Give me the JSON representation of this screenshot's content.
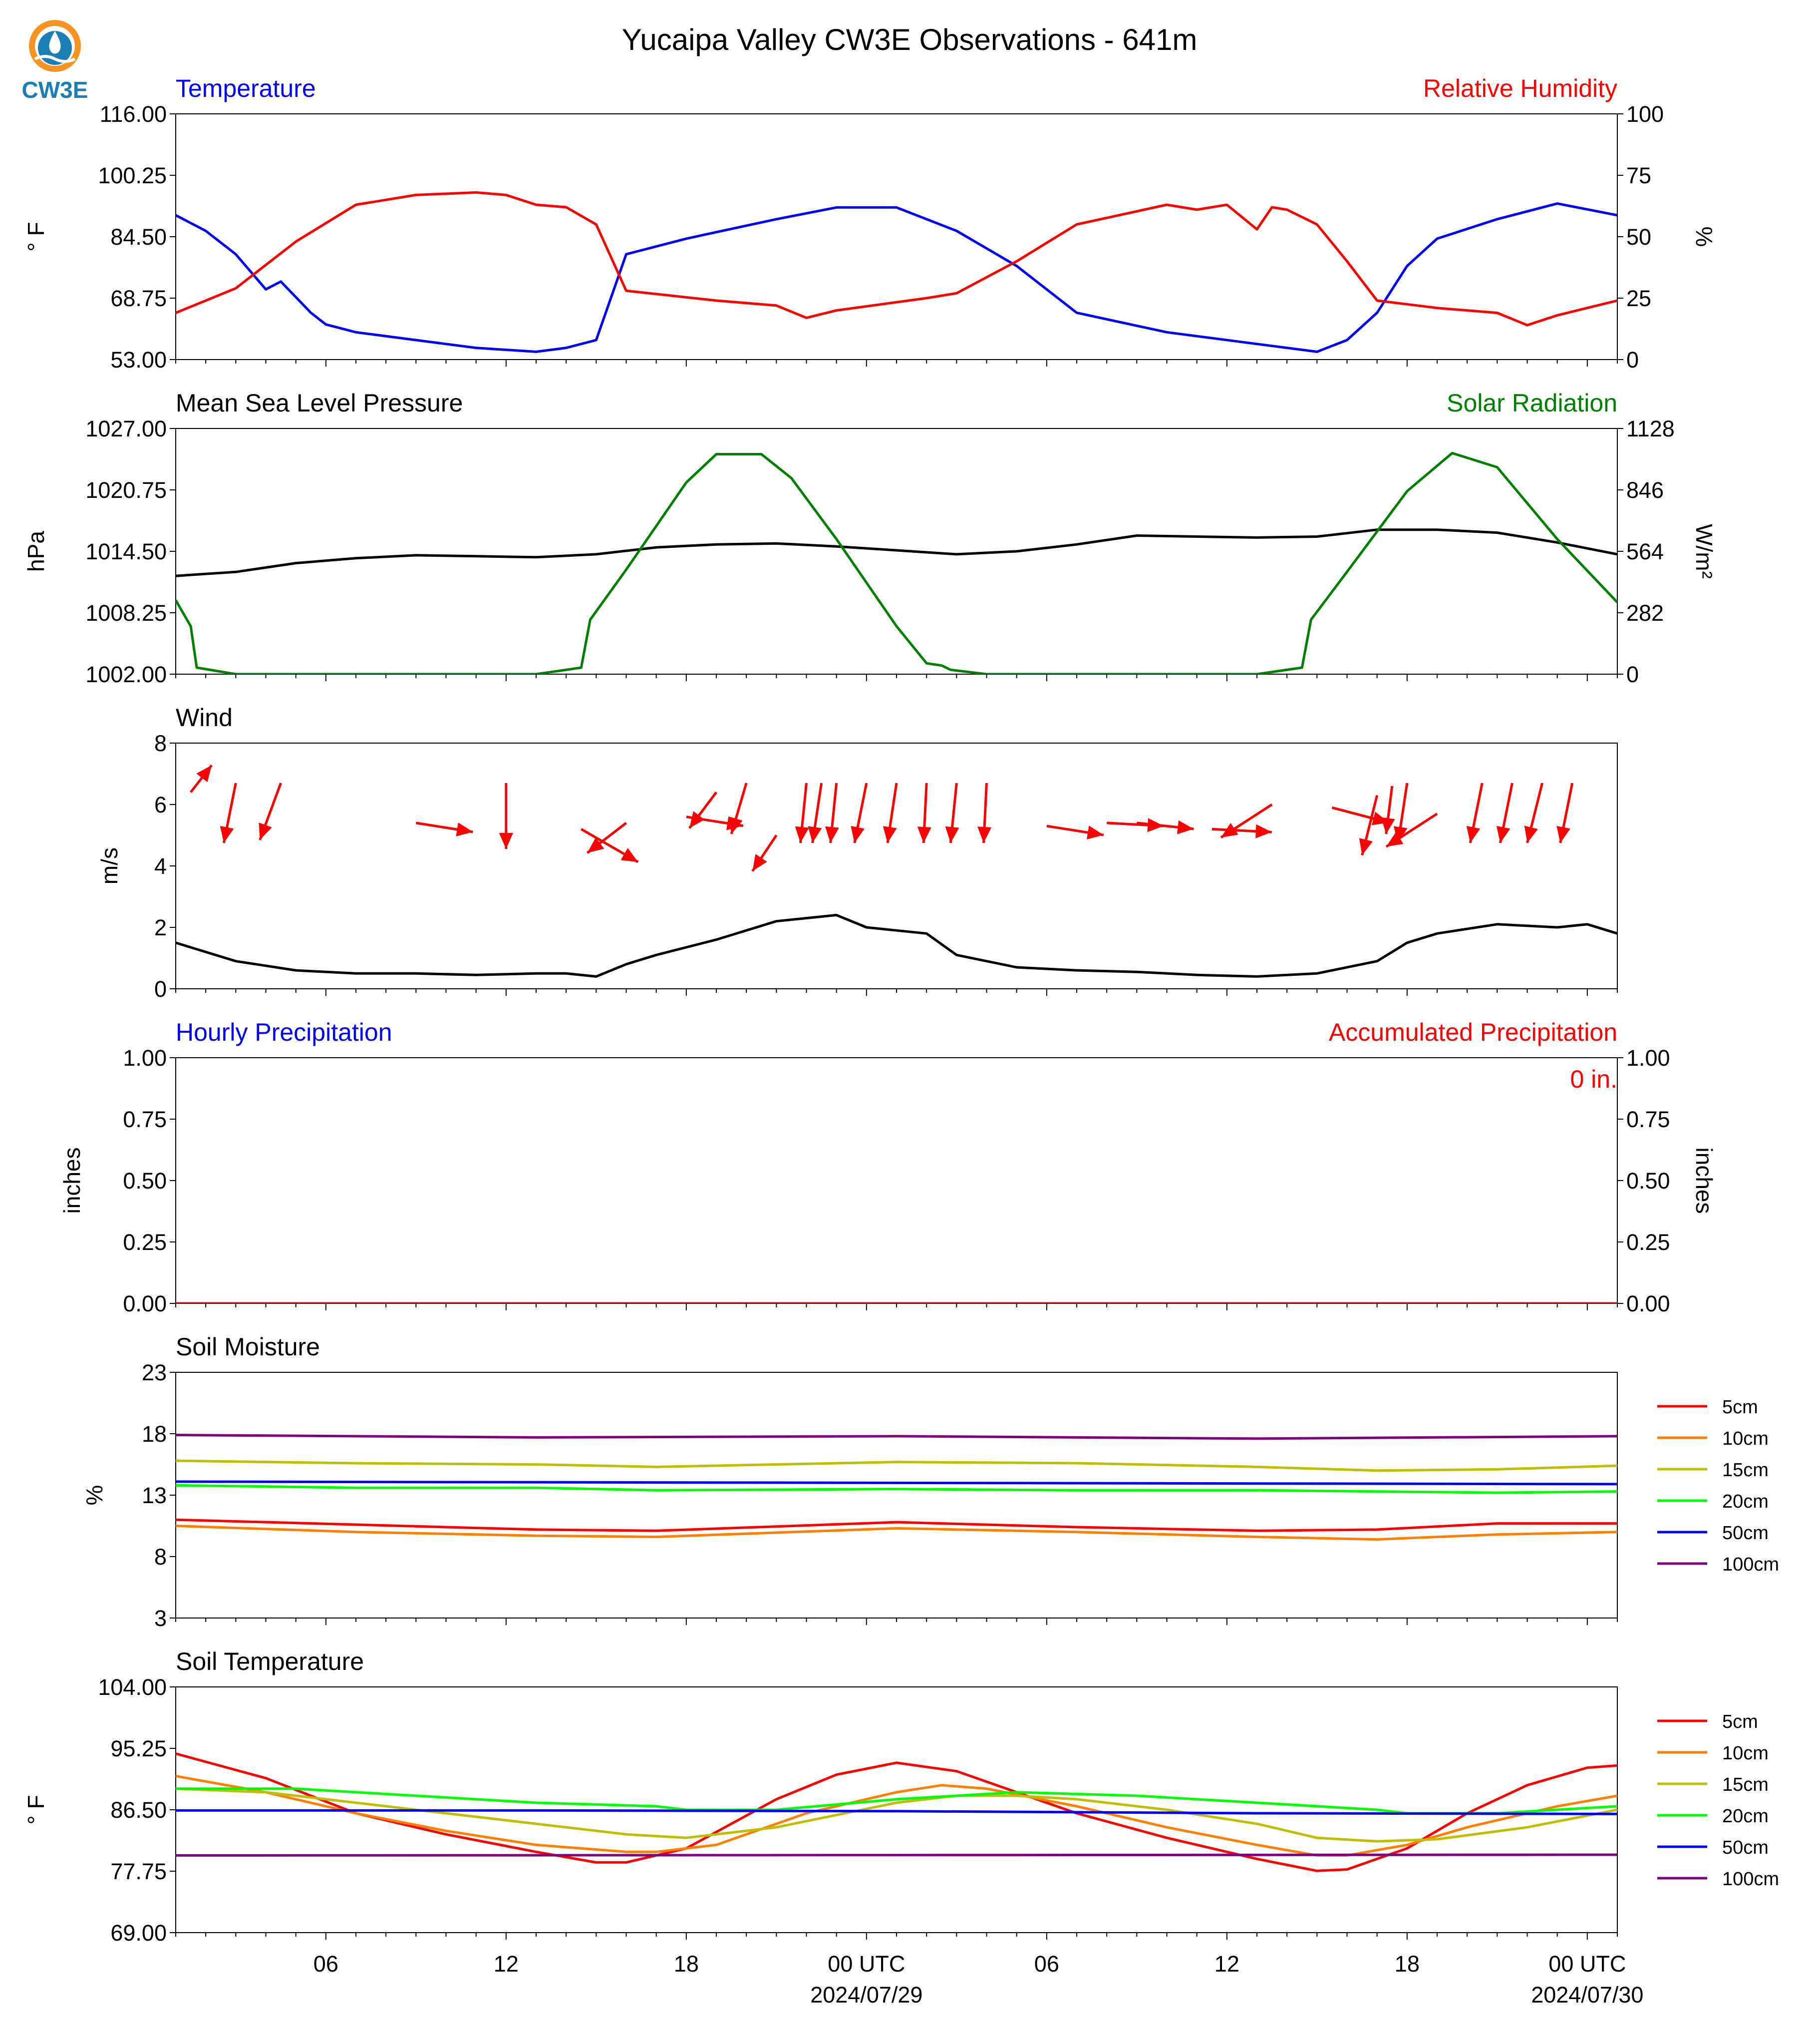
{
  "figure": {
    "title": "Yucaipa Valley CW3E Observations - 641m",
    "logo_text": "CW3E",
    "x_ticks": [
      "06",
      "12",
      "18",
      "00 UTC",
      "06",
      "12",
      "18",
      "00 UTC"
    ],
    "x_dates": [
      "2024/07/29",
      "2024/07/30"
    ]
  },
  "chart_data": [
    {
      "id": "temp_rh",
      "type": "line",
      "title_left": "Temperature",
      "title_right": "Relative Humidity",
      "title_left_color": "#0000ff",
      "title_right_color": "#ff0000",
      "ylabel_left": "° F",
      "ylabel_right": "%",
      "ylim_left": [
        53,
        116
      ],
      "ylim_right": [
        0,
        100
      ],
      "yticks_left": [
        "53.00",
        "68.75",
        "84.50",
        "100.25",
        "116.00"
      ],
      "yticks_right": [
        "0",
        "25",
        "50",
        "75",
        "100"
      ],
      "x_unit": "hours since 2024-07-28 01 UTC",
      "series": [
        {
          "name": "Temperature",
          "axis": "left",
          "color": "#0000ff",
          "x": [
            0,
            1,
            2,
            3,
            3.5,
            4,
            4.5,
            5,
            6,
            8,
            10,
            12,
            13,
            14,
            15,
            17,
            20,
            22,
            24,
            26,
            28,
            30,
            33,
            36,
            38,
            39,
            40,
            41,
            42,
            44,
            46,
            48
          ],
          "y": [
            90,
            86,
            80,
            71,
            73,
            69,
            65,
            62,
            60,
            58,
            56,
            55,
            56,
            58,
            80,
            84,
            89,
            92,
            92,
            86,
            77,
            65,
            60,
            57,
            55,
            58,
            65,
            77,
            84,
            89,
            93,
            90
          ]
        },
        {
          "name": "Relative Humidity",
          "axis": "right",
          "color": "#ff0000",
          "x": [
            0,
            2,
            4,
            6,
            8,
            10,
            11,
            12,
            13,
            14,
            15,
            18,
            20,
            21,
            22,
            25,
            26,
            28,
            30,
            33,
            34,
            35,
            36,
            36.5,
            37,
            38,
            39,
            40,
            42,
            44,
            45,
            46,
            48
          ],
          "y": [
            19,
            29,
            48,
            63,
            67,
            68,
            67,
            63,
            62,
            55,
            28,
            24,
            22,
            17,
            20,
            25,
            27,
            40,
            55,
            63,
            61,
            63,
            53,
            62,
            61,
            55,
            40,
            24,
            21,
            19,
            14,
            18,
            24
          ]
        }
      ]
    },
    {
      "id": "pressure_solar",
      "type": "line",
      "title_left": "Mean Sea Level Pressure",
      "title_right": "Solar Radiation",
      "title_left_color": "#000000",
      "title_right_color": "#008000",
      "ylabel_left": "hPa",
      "ylabel_right": "W/m²",
      "ylim_left": [
        1002,
        1027
      ],
      "ylim_right": [
        0,
        1128
      ],
      "yticks_left": [
        "1002.00",
        "1008.25",
        "1014.50",
        "1020.75",
        "1027.00"
      ],
      "yticks_right": [
        "0",
        "282",
        "564",
        "846",
        "1128"
      ],
      "x_unit": "hours since 2024-07-28 01 UTC",
      "series": [
        {
          "name": "Mean Sea Level Pressure",
          "axis": "left",
          "color": "#000000",
          "x": [
            0,
            2,
            4,
            6,
            8,
            10,
            12,
            14,
            16,
            18,
            20,
            22,
            24,
            26,
            28,
            30,
            32,
            34,
            36,
            38,
            40,
            42,
            44,
            46,
            48
          ],
          "y": [
            1012.0,
            1012.4,
            1013.3,
            1013.8,
            1014.1,
            1014.0,
            1013.9,
            1014.2,
            1014.9,
            1015.2,
            1015.3,
            1015.0,
            1014.6,
            1014.2,
            1014.5,
            1015.2,
            1016.1,
            1016.0,
            1015.9,
            1016.0,
            1016.7,
            1016.7,
            1016.4,
            1015.4,
            1014.2
          ]
        },
        {
          "name": "Solar Radiation",
          "axis": "right",
          "color": "#008000",
          "x": [
            0,
            0.5,
            0.7,
            2,
            12,
            13.5,
            13.8,
            15,
            17,
            18,
            19.5,
            20.5,
            22,
            24,
            25,
            25.5,
            25.8,
            27,
            36,
            37.5,
            37.8,
            39,
            41,
            42.5,
            44,
            46,
            48
          ],
          "y": [
            340,
            220,
            30,
            0,
            0,
            30,
            250,
            480,
            880,
            1010,
            1010,
            900,
            620,
            220,
            50,
            40,
            20,
            0,
            0,
            30,
            250,
            470,
            840,
            1015,
            950,
            620,
            330
          ]
        }
      ]
    },
    {
      "id": "wind",
      "type": "line",
      "title_left": "Wind",
      "title_left_color": "#000000",
      "ylabel_left": "m/s",
      "ylim_left": [
        0,
        8
      ],
      "yticks_left": [
        "0",
        "2",
        "4",
        "6",
        "8"
      ],
      "x_unit": "hours since 2024-07-28 01 UTC",
      "series": [
        {
          "name": "Wind speed",
          "color": "#000000",
          "x": [
            0,
            2,
            4,
            6,
            8,
            10,
            12,
            13,
            14,
            15,
            16,
            18,
            20,
            22,
            23,
            24,
            25,
            26,
            27,
            28,
            30,
            32,
            34,
            36,
            38,
            40,
            41,
            42,
            44,
            46,
            47,
            48
          ],
          "y": [
            1.5,
            0.9,
            0.6,
            0.5,
            0.5,
            0.45,
            0.5,
            0.5,
            0.4,
            0.8,
            1.1,
            1.6,
            2.2,
            2.4,
            2.0,
            1.9,
            1.8,
            1.1,
            0.9,
            0.7,
            0.6,
            0.55,
            0.45,
            0.4,
            0.5,
            0.9,
            1.5,
            1.8,
            2.1,
            2.0,
            2.1,
            1.8
          ]
        }
      ],
      "wind_barbs": {
        "color": "#ff0000",
        "x": [
          0.5,
          2,
          3.5,
          8,
          11,
          13.5,
          15,
          17,
          18,
          19,
          20,
          21,
          21.5,
          22,
          23,
          24,
          25,
          26,
          27,
          29,
          31,
          32,
          34.5,
          36.5,
          38.5,
          40,
          40.5,
          41,
          42,
          43.5,
          44.5,
          45.5,
          46.5
        ],
        "u": [
          0.7,
          -0.4,
          -0.7,
          1.9,
          0,
          1.9,
          -1.3,
          1.9,
          -0.9,
          -0.5,
          -0.8,
          -0.2,
          -0.3,
          -0.2,
          -0.4,
          -0.3,
          -0.1,
          -0.2,
          -0.1,
          1.9,
          1.9,
          1.9,
          2,
          -1.7,
          1.9,
          -0.5,
          -0.2,
          -0.3,
          -1.7,
          -0.4,
          -0.4,
          -0.5,
          -0.4
        ],
        "v": [
          0.9,
          -2.0,
          -1.9,
          -0.3,
          -2.2,
          -1.1,
          -1.0,
          -0.3,
          -1.2,
          -1.7,
          -1.2,
          -2.0,
          -2.0,
          -2.0,
          -2.0,
          -2.0,
          -2.0,
          -2.0,
          -2.0,
          -0.3,
          -0.1,
          -0.2,
          -0.1,
          -1.1,
          -0.5,
          -2.0,
          -1.6,
          -2.0,
          -1.1,
          -2.0,
          -2.0,
          -2.0,
          -2.0
        ],
        "y": [
          6.4,
          6.7,
          6.7,
          5.4,
          6.7,
          5.2,
          5.4,
          5.6,
          6.4,
          6.7,
          5.0,
          6.7,
          6.7,
          6.7,
          6.7,
          6.7,
          6.7,
          6.7,
          6.7,
          5.3,
          5.4,
          5.4,
          5.2,
          6.0,
          5.9,
          6.3,
          6.6,
          6.7,
          5.7,
          6.7,
          6.7,
          6.7,
          6.7
        ]
      }
    },
    {
      "id": "precip",
      "type": "line",
      "title_left": "Hourly Precipitation",
      "title_right": "Accumulated Precipitation",
      "title_left_color": "#0000ff",
      "title_right_color": "#ff0000",
      "ylabel_left": "inches",
      "ylabel_right": "inches",
      "ylim_left": [
        0,
        1
      ],
      "ylim_right": [
        0,
        1
      ],
      "yticks_left": [
        "0.00",
        "0.25",
        "0.50",
        "0.75",
        "1.00"
      ],
      "yticks_right": [
        "0.00",
        "0.25",
        "0.50",
        "0.75",
        "1.00"
      ],
      "annotation": "0 in.",
      "annotation_color": "#ff0000",
      "x_unit": "hours since 2024-07-28 01 UTC",
      "series": [
        {
          "name": "Hourly Precipitation",
          "color": "#0000ff",
          "x": [
            0,
            48
          ],
          "y": [
            0,
            0
          ]
        },
        {
          "name": "Accumulated Precipitation",
          "color": "#ff0000",
          "x": [
            0,
            48
          ],
          "y": [
            0,
            0
          ]
        }
      ]
    },
    {
      "id": "soil_moisture",
      "type": "line",
      "title_left": "Soil Moisture",
      "title_left_color": "#000000",
      "ylabel_left": "%",
      "ylim_left": [
        3,
        23
      ],
      "yticks_left": [
        "3",
        "8",
        "13",
        "18",
        "23"
      ],
      "x_unit": "hours since 2024-07-28 01 UTC",
      "series": [
        {
          "name": "5cm",
          "color": "#ff0000",
          "x": [
            0,
            6,
            12,
            16,
            24,
            30,
            36,
            40,
            44,
            48
          ],
          "y": [
            11.0,
            10.6,
            10.2,
            10.1,
            10.8,
            10.4,
            10.1,
            10.2,
            10.7,
            10.7
          ]
        },
        {
          "name": "10cm",
          "color": "#ff7f00",
          "x": [
            0,
            6,
            12,
            16,
            24,
            30,
            36,
            40,
            44,
            48
          ],
          "y": [
            10.5,
            10.0,
            9.7,
            9.6,
            10.3,
            10.0,
            9.6,
            9.4,
            9.8,
            10.0
          ]
        },
        {
          "name": "15cm",
          "color": "#bfbf00",
          "x": [
            0,
            6,
            12,
            16,
            24,
            30,
            36,
            40,
            44,
            48
          ],
          "y": [
            15.8,
            15.6,
            15.5,
            15.3,
            15.7,
            15.6,
            15.3,
            15.0,
            15.1,
            15.4
          ]
        },
        {
          "name": "20cm",
          "color": "#00ff00",
          "x": [
            0,
            6,
            12,
            16,
            24,
            30,
            36,
            40,
            44,
            48
          ],
          "y": [
            13.8,
            13.6,
            13.6,
            13.4,
            13.5,
            13.4,
            13.4,
            13.3,
            13.2,
            13.3
          ]
        },
        {
          "name": "50cm",
          "color": "#0000ff",
          "x": [
            0,
            48
          ],
          "y": [
            14.1,
            13.9
          ]
        },
        {
          "name": "100cm",
          "color": "#7f007f",
          "x": [
            0,
            12,
            24,
            36,
            48
          ],
          "y": [
            17.9,
            17.7,
            17.8,
            17.6,
            17.8
          ]
        }
      ]
    },
    {
      "id": "soil_temp",
      "type": "line",
      "title_left": "Soil Temperature",
      "title_left_color": "#000000",
      "ylabel_left": "° F",
      "ylim_left": [
        69,
        104
      ],
      "yticks_left": [
        "69.00",
        "77.75",
        "86.50",
        "95.25",
        "104.00"
      ],
      "x_unit": "hours since 2024-07-28 01 UTC",
      "series": [
        {
          "name": "5cm",
          "color": "#ff0000",
          "x": [
            0,
            3,
            6,
            9,
            12,
            14,
            15,
            17,
            20,
            22,
            24,
            26,
            28,
            30,
            33,
            36,
            38,
            39,
            41,
            43,
            45,
            47,
            48
          ],
          "y": [
            94.5,
            91,
            86,
            83,
            80.5,
            79,
            79,
            81,
            88,
            91.5,
            93.2,
            92,
            89,
            86,
            82.5,
            79.5,
            77.8,
            78,
            81,
            86,
            90,
            92.5,
            92.8
          ]
        },
        {
          "name": "10cm",
          "color": "#ff7f00",
          "x": [
            0,
            3,
            6,
            9,
            12,
            15,
            16,
            18,
            21,
            24,
            25.5,
            27,
            30,
            33,
            36,
            38,
            39,
            41,
            43,
            46,
            48
          ],
          "y": [
            91.3,
            89,
            86,
            83.5,
            81.5,
            80.5,
            80.5,
            81.5,
            86,
            89,
            90,
            89.5,
            87,
            84,
            81.5,
            80,
            80,
            81.5,
            84,
            87,
            88.5
          ]
        },
        {
          "name": "15cm",
          "color": "#bfbf00",
          "x": [
            0,
            3,
            6,
            9,
            12,
            15,
            17,
            20,
            24,
            26,
            28,
            30,
            33,
            36,
            38,
            40,
            42,
            45,
            48
          ],
          "y": [
            89.5,
            89,
            87.5,
            86,
            84.5,
            83,
            82.5,
            84,
            87.5,
            88.5,
            88.5,
            88,
            86.5,
            84.5,
            82.5,
            82,
            82.3,
            84,
            86.5
          ]
        },
        {
          "name": "20cm",
          "color": "#00ff00",
          "x": [
            0,
            4,
            8,
            12,
            16,
            17,
            20,
            24,
            28,
            32,
            36,
            40,
            41,
            44,
            48
          ],
          "y": [
            89.5,
            89.5,
            88.5,
            87.5,
            87,
            86.5,
            86.5,
            88,
            89,
            88.5,
            87.5,
            86.5,
            86,
            86,
            87
          ]
        },
        {
          "name": "50cm",
          "color": "#0000ff",
          "x": [
            0,
            12,
            24,
            36,
            48
          ],
          "y": [
            86.4,
            86.4,
            86.3,
            86.0,
            85.9
          ]
        },
        {
          "name": "100cm",
          "color": "#7f007f",
          "x": [
            0,
            48
          ],
          "y": [
            80.0,
            80.1
          ]
        }
      ]
    }
  ]
}
